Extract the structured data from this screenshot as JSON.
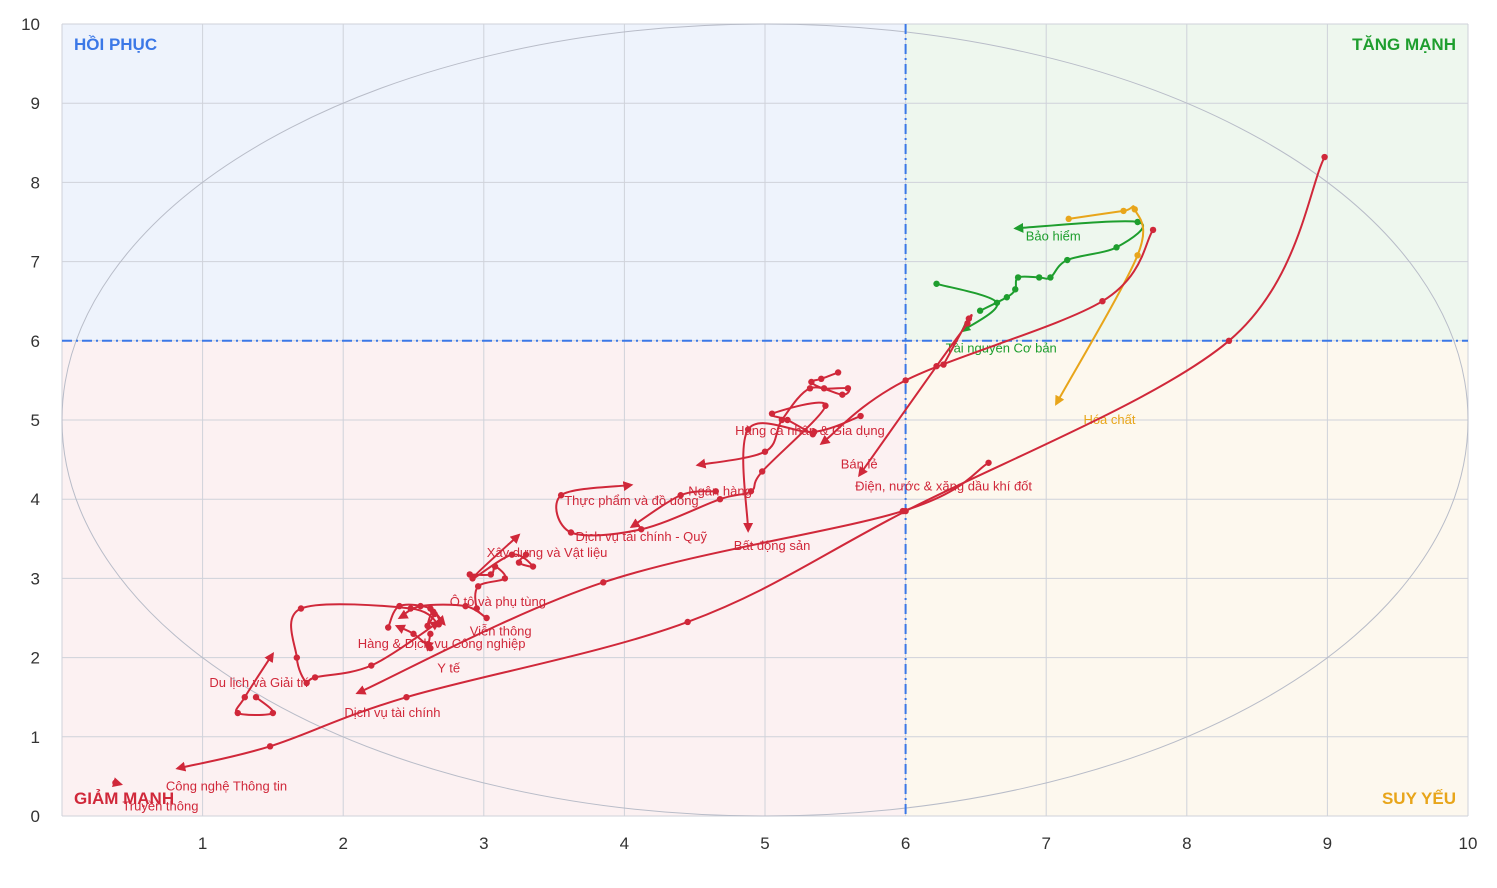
{
  "chart_data": {
    "type": "scatter",
    "xlim": [
      0,
      10
    ],
    "ylim": [
      0,
      10
    ],
    "x_ticks": [
      "1",
      "2",
      "3",
      "4",
      "5",
      "6",
      "7",
      "8",
      "9",
      "10"
    ],
    "y_ticks": [
      "0",
      "1",
      "2",
      "3",
      "4",
      "5",
      "6",
      "7",
      "8",
      "9",
      "10"
    ],
    "grid": true,
    "thresholds": {
      "x": 6,
      "y": 6
    },
    "quadrants": [
      {
        "label": "HỒI PHỤC",
        "color": "#3b78e7",
        "bg": "#eef3fc",
        "xr": [
          0,
          6
        ],
        "yr": [
          6,
          10
        ],
        "pos": "top-left"
      },
      {
        "label": "TĂNG MẠNH",
        "color": "#1e9e2e",
        "bg": "#eef7ee",
        "xr": [
          6,
          10
        ],
        "yr": [
          6,
          10
        ],
        "pos": "top-right"
      },
      {
        "label": "GIẢM MẠNH",
        "color": "#d0283a",
        "bg": "#fcf1f2",
        "xr": [
          0,
          6
        ],
        "yr": [
          0,
          6
        ],
        "pos": "bottom-left"
      },
      {
        "label": "SUY YẾU",
        "color": "#e8a51a",
        "bg": "#fdf8ee",
        "xr": [
          6,
          10
        ],
        "yr": [
          0,
          6
        ],
        "pos": "bottom-right"
      }
    ],
    "colors": {
      "strong": "#1e9e2e",
      "weak": "#e8a51a",
      "decline": "#d0283a",
      "threshold": "#3b78e7",
      "grid": "#cfd2da"
    },
    "series": [
      {
        "name": "Bảo hiểm",
        "color": "#1e9e2e",
        "points": [
          [
            6.53,
            6.38
          ],
          [
            6.72,
            6.55
          ],
          [
            6.78,
            6.65
          ],
          [
            6.8,
            6.8
          ],
          [
            6.95,
            6.8
          ],
          [
            7.03,
            6.8
          ],
          [
            7.15,
            7.02
          ],
          [
            7.5,
            7.18
          ],
          [
            7.65,
            7.5
          ],
          [
            6.78,
            7.42
          ]
        ],
        "label_at": [
          7.05,
          7.32
        ]
      },
      {
        "name": "Tài nguyên Cơ bản",
        "color": "#1e9e2e",
        "points": [
          [
            6.22,
            6.72
          ],
          [
            6.65,
            6.48
          ],
          [
            6.4,
            6.12
          ]
        ],
        "label_at": [
          6.68,
          5.9
        ]
      },
      {
        "name": "Hóa chất",
        "color": "#e8a51a",
        "points": [
          [
            7.16,
            7.54
          ],
          [
            7.55,
            7.64
          ],
          [
            7.63,
            7.66
          ],
          [
            7.65,
            7.08
          ],
          [
            7.07,
            5.2
          ]
        ],
        "label_at": [
          7.45,
          5.0
        ]
      },
      {
        "name": "Bán lẻ",
        "color": "#d0283a",
        "points": [
          [
            7.76,
            7.4
          ],
          [
            7.4,
            6.5
          ],
          [
            6.0,
            5.5
          ],
          [
            5.4,
            4.7
          ]
        ],
        "label_at": [
          5.67,
          4.44
        ]
      },
      {
        "name": "Điện, nước & xăng dầu khí đốt",
        "color": "#d0283a",
        "points": [
          [
            6.27,
            5.7
          ],
          [
            6.45,
            6.28
          ],
          [
            6.44,
            6.22
          ],
          [
            6.22,
            5.68
          ],
          [
            5.67,
            4.3
          ]
        ],
        "label_at": [
          6.27,
          4.16
        ]
      },
      {
        "name": "Hàng cá nhân & Gia dụng",
        "color": "#d0283a",
        "points": [
          [
            5.52,
            5.6
          ],
          [
            5.4,
            5.52
          ],
          [
            5.33,
            5.48
          ],
          [
            5.42,
            5.4
          ],
          [
            5.59,
            5.4
          ],
          [
            5.55,
            5.32
          ],
          [
            5.32,
            5.4
          ],
          [
            5.12,
            5.0
          ],
          [
            5.0,
            4.6
          ],
          [
            4.52,
            4.43
          ]
        ],
        "label_at": [
          5.32,
          4.86
        ]
      },
      {
        "name": "Ngân hàng",
        "color": "#d0283a",
        "points": [
          [
            5.34,
            4.82
          ],
          [
            5.16,
            5.0
          ],
          [
            5.05,
            5.08
          ],
          [
            5.43,
            5.18
          ],
          [
            4.98,
            4.35
          ],
          [
            4.9,
            4.1
          ],
          [
            4.68,
            4.0
          ],
          [
            4.12,
            3.62
          ],
          [
            3.62,
            3.58
          ],
          [
            3.55,
            4.05
          ],
          [
            4.05,
            4.18
          ]
        ],
        "label_at": [
          4.68,
          4.1
        ]
      },
      {
        "name": "Bất động sản",
        "color": "#d0283a",
        "points": [
          [
            5.68,
            5.05
          ],
          [
            5.35,
            4.85
          ],
          [
            4.88,
            4.88
          ],
          [
            4.88,
            3.6
          ]
        ],
        "label_at": [
          5.05,
          3.41
        ]
      },
      {
        "name": "Thực phẩm và đồ uống",
        "color": "#d0283a",
        "points": [
          [
            4.65,
            4.1
          ],
          [
            4.4,
            4.05
          ],
          [
            4.05,
            3.65
          ]
        ],
        "label_at": [
          4.05,
          3.98
        ]
      },
      {
        "name": "Dịch vụ tài chính - Quỹ",
        "color": "#d0283a",
        "points": [
          [
            3.3,
            3.3
          ],
          [
            3.25,
            3.2
          ],
          [
            3.35,
            3.15
          ],
          [
            3.2,
            3.3
          ],
          [
            2.92,
            3.0
          ],
          [
            3.25,
            3.55
          ]
        ],
        "label_at": [
          4.12,
          3.52
        ]
      },
      {
        "name": "Xây dựng và Vật liệu",
        "color": "#d0283a",
        "points": [
          [
            2.9,
            3.05
          ],
          [
            3.05,
            3.05
          ],
          [
            3.08,
            3.15
          ],
          [
            3.15,
            3.0
          ],
          [
            2.96,
            2.9
          ],
          [
            2.95,
            2.62
          ],
          [
            3.02,
            2.5
          ],
          [
            2.87,
            2.65
          ],
          [
            2.55,
            2.65
          ],
          [
            2.4,
            2.5
          ]
        ],
        "label_at": [
          3.45,
          3.32
        ]
      },
      {
        "name": "Ô tô và phụ tùng",
        "color": "#d0283a",
        "points": [
          [
            2.32,
            2.38
          ],
          [
            2.4,
            2.65
          ],
          [
            2.62,
            2.62
          ],
          [
            2.68,
            2.42
          ],
          [
            2.48,
            2.62
          ],
          [
            1.7,
            2.62
          ],
          [
            1.67,
            2.0
          ],
          [
            1.74,
            1.68
          ],
          [
            1.8,
            1.75
          ],
          [
            2.2,
            1.9
          ],
          [
            2.68,
            2.45
          ]
        ],
        "label_at": [
          3.1,
          2.7
        ]
      },
      {
        "name": "Viễn thông",
        "color": "#d0283a",
        "points": [
          [
            2.65,
            2.55
          ],
          [
            2.6,
            2.4
          ],
          [
            2.64,
            2.58
          ],
          [
            2.72,
            2.42
          ]
        ],
        "label_at": [
          3.12,
          2.33
        ]
      },
      {
        "name": "Hàng & Dịch vụ Công nghiệp",
        "color": "#d0283a",
        "points": [
          [
            2.62,
            2.12
          ],
          [
            2.5,
            2.3
          ],
          [
            2.38,
            2.4
          ]
        ],
        "label_at": [
          2.7,
          2.17
        ]
      },
      {
        "name": "Y tế",
        "color": "#d0283a",
        "points": [
          [
            2.62,
            2.3
          ],
          [
            2.6,
            2.1
          ]
        ],
        "label_at": [
          2.75,
          1.86
        ]
      },
      {
        "name": "Du lịch và Giải trí",
        "color": "#d0283a",
        "points": [
          [
            1.38,
            1.5
          ],
          [
            1.5,
            1.3
          ],
          [
            1.25,
            1.3
          ],
          [
            1.3,
            1.5
          ],
          [
            1.5,
            2.05
          ]
        ],
        "label_at": [
          1.4,
          1.68
        ]
      },
      {
        "name": "Dịch vụ tài chính",
        "color": "#d0283a",
        "points": [
          [
            6.59,
            4.46
          ],
          [
            5.98,
            3.85
          ],
          [
            3.85,
            2.95
          ],
          [
            2.1,
            1.55
          ]
        ],
        "label_at": [
          2.35,
          1.3
        ]
      },
      {
        "name": "Công nghệ Thông tin",
        "color": "#d0283a",
        "points": [
          [
            8.98,
            8.32
          ],
          [
            8.3,
            6.0
          ],
          [
            6.0,
            3.85
          ],
          [
            4.45,
            2.45
          ],
          [
            2.45,
            1.5
          ],
          [
            1.48,
            0.88
          ],
          [
            0.82,
            0.6
          ]
        ],
        "label_at": [
          1.17,
          0.37
        ]
      },
      {
        "name": "Truyền thông",
        "color": "#d0283a",
        "points": [
          [
            0.38,
            0.42
          ],
          [
            0.42,
            0.4
          ]
        ],
        "label_at": [
          0.7,
          0.12
        ]
      }
    ]
  }
}
